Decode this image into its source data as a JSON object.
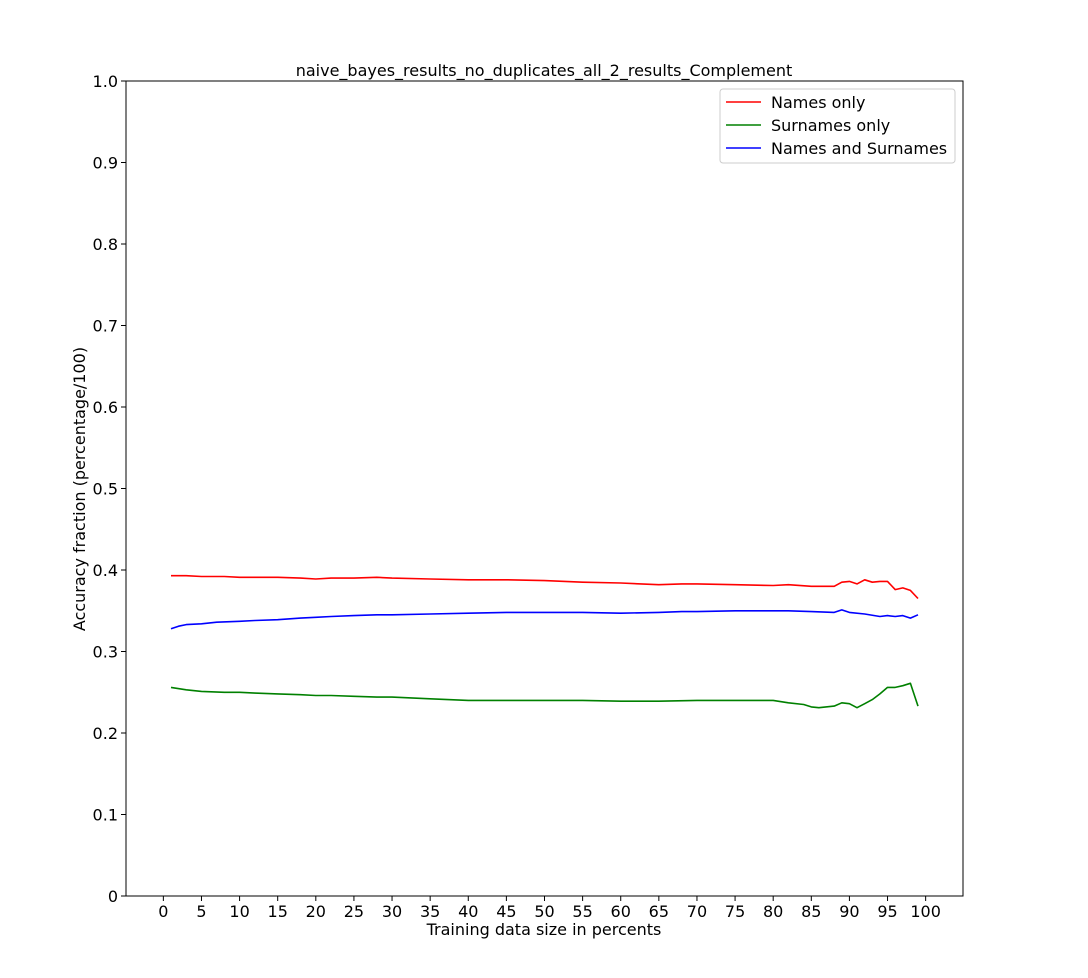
{
  "chart_data": {
    "type": "line",
    "title": "naive_bayes_results_no_duplicates_all_2_results_Complement",
    "xlabel": "Training data size in percents",
    "ylabel": "Accuracy fraction (percentage/100)",
    "xlim": [
      -4.9,
      104.9
    ],
    "ylim": [
      0,
      1.0
    ],
    "xticks": [
      0,
      5,
      10,
      15,
      20,
      25,
      30,
      35,
      40,
      45,
      50,
      55,
      60,
      65,
      70,
      75,
      80,
      85,
      90,
      95,
      100
    ],
    "xtick_labels": [
      "0",
      "5",
      "10",
      "15",
      "20",
      "25",
      "30",
      "35",
      "40",
      "45",
      "50",
      "55",
      "60",
      "65",
      "70",
      "75",
      "80",
      "85",
      "90",
      "95",
      "100"
    ],
    "yticks": [
      0,
      0.1,
      0.2,
      0.3,
      0.4,
      0.5,
      0.6,
      0.7,
      0.8,
      0.9,
      1.0
    ],
    "ytick_labels": [
      "0",
      "0.1",
      "0.2",
      "0.3",
      "0.4",
      "0.5",
      "0.6",
      "0.7",
      "0.8",
      "0.9",
      "1.0"
    ],
    "grid": false,
    "legend_position": "top-right",
    "series": [
      {
        "name": "Names only",
        "color": "#ff0000",
        "x": [
          1,
          3,
          5,
          8,
          10,
          12,
          15,
          18,
          20,
          22,
          25,
          28,
          30,
          35,
          40,
          45,
          50,
          55,
          60,
          65,
          68,
          70,
          75,
          80,
          82,
          85,
          88,
          89,
          90,
          91,
          92,
          93,
          94,
          95,
          96,
          97,
          98,
          99
        ],
        "y": [
          0.393,
          0.393,
          0.392,
          0.392,
          0.391,
          0.391,
          0.391,
          0.39,
          0.389,
          0.39,
          0.39,
          0.391,
          0.39,
          0.389,
          0.388,
          0.388,
          0.387,
          0.385,
          0.384,
          0.382,
          0.383,
          0.383,
          0.382,
          0.381,
          0.382,
          0.38,
          0.38,
          0.385,
          0.386,
          0.383,
          0.388,
          0.385,
          0.386,
          0.386,
          0.376,
          0.378,
          0.375,
          0.365
        ]
      },
      {
        "name": "Surnames only",
        "color": "#008000",
        "x": [
          1,
          3,
          5,
          8,
          10,
          12,
          15,
          18,
          20,
          22,
          25,
          28,
          30,
          35,
          40,
          45,
          50,
          55,
          60,
          65,
          70,
          75,
          80,
          82,
          84,
          85,
          86,
          88,
          89,
          90,
          91,
          92,
          93,
          94,
          95,
          96,
          97,
          98,
          99
        ],
        "y": [
          0.256,
          0.253,
          0.251,
          0.25,
          0.25,
          0.249,
          0.248,
          0.247,
          0.246,
          0.246,
          0.245,
          0.244,
          0.244,
          0.242,
          0.24,
          0.24,
          0.24,
          0.24,
          0.239,
          0.239,
          0.24,
          0.24,
          0.24,
          0.237,
          0.235,
          0.232,
          0.231,
          0.233,
          0.237,
          0.236,
          0.231,
          0.236,
          0.241,
          0.248,
          0.256,
          0.256,
          0.258,
          0.261,
          0.233
        ]
      },
      {
        "name": "Names and Surnames",
        "color": "#0000ff",
        "x": [
          1,
          2,
          3,
          5,
          7,
          10,
          12,
          15,
          18,
          20,
          22,
          25,
          28,
          30,
          35,
          40,
          45,
          50,
          55,
          60,
          65,
          68,
          70,
          75,
          80,
          82,
          85,
          88,
          89,
          90,
          92,
          94,
          95,
          96,
          97,
          98,
          99
        ],
        "y": [
          0.328,
          0.331,
          0.333,
          0.334,
          0.336,
          0.337,
          0.338,
          0.339,
          0.341,
          0.342,
          0.343,
          0.344,
          0.345,
          0.345,
          0.346,
          0.347,
          0.348,
          0.348,
          0.348,
          0.347,
          0.348,
          0.349,
          0.349,
          0.35,
          0.35,
          0.35,
          0.349,
          0.348,
          0.351,
          0.348,
          0.346,
          0.343,
          0.344,
          0.343,
          0.344,
          0.341,
          0.345
        ]
      }
    ]
  }
}
